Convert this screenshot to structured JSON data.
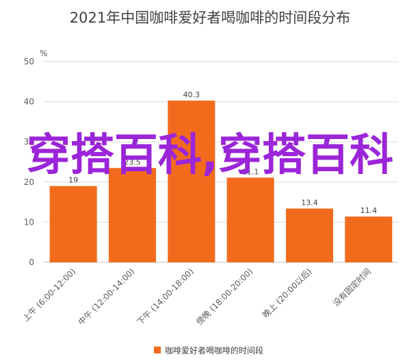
{
  "chart_data": {
    "type": "bar",
    "title": "2021年中国咖啡爱好者喝咖啡的时间段分布",
    "unit": "%",
    "categories": [
      "上午 (6:00-12:00)",
      "中午 (12:00-14:00)",
      "下午 (14:00-18:00)",
      "傍晚 (18:00-20:00)",
      "晚上 (20:00以后)",
      "没有固定时间"
    ],
    "series": [
      {
        "name": "咖啡爱好者喝咖啡的时间段",
        "values": [
          19.0,
          23.5,
          40.3,
          21.1,
          13.4,
          11.4
        ]
      }
    ],
    "data_labels": [
      "19",
      "23.5",
      "40.3",
      "21.1",
      "13.4",
      "11.4"
    ],
    "ylim": [
      0,
      50
    ],
    "yticks": [
      "0",
      "10",
      "20",
      "30",
      "40",
      "50"
    ],
    "grid": true,
    "legend_position": "bottom",
    "bar_color": "#f26b1d"
  },
  "watermark": "穿搭百科,穿搭百科"
}
